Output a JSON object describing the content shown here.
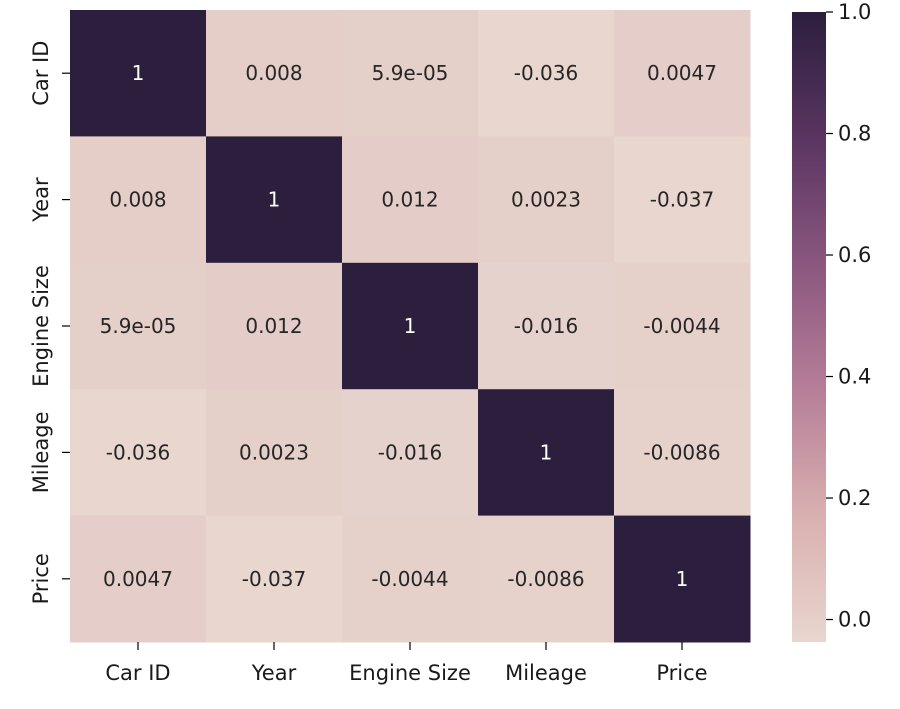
{
  "chart_data": {
    "type": "heatmap",
    "title": "",
    "xlabel": "",
    "ylabel": "",
    "x_categories": [
      "Car ID",
      "Year",
      "Engine Size",
      "Mileage",
      "Price"
    ],
    "y_categories": [
      "Car ID",
      "Year",
      "Engine Size",
      "Mileage",
      "Price"
    ],
    "values": [
      [
        1,
        0.008,
        5.9e-05,
        -0.036,
        0.0047
      ],
      [
        0.008,
        1,
        0.012,
        0.0023,
        -0.037
      ],
      [
        5.9e-05,
        0.012,
        1,
        -0.016,
        -0.0044
      ],
      [
        -0.036,
        0.0023,
        -0.016,
        1,
        -0.0086
      ],
      [
        0.0047,
        -0.037,
        -0.0044,
        -0.0086,
        1
      ]
    ],
    "annotations": [
      [
        "1",
        "0.008",
        "5.9e-05",
        "-0.036",
        "0.0047"
      ],
      [
        "0.008",
        "1",
        "0.012",
        "0.0023",
        "-0.037"
      ],
      [
        "5.9e-05",
        "0.012",
        "1",
        "-0.016",
        "-0.0044"
      ],
      [
        "-0.036",
        "0.0023",
        "-0.016",
        "1",
        "-0.0086"
      ],
      [
        "0.0047",
        "-0.037",
        "-0.0044",
        "-0.0086",
        "1"
      ]
    ],
    "colorbar": {
      "range": [
        -0.037,
        1.0
      ],
      "ticks": [
        0.0,
        0.2,
        0.4,
        0.6,
        0.8,
        1.0
      ],
      "tick_labels": [
        "0.0",
        "0.2",
        "0.4",
        "0.6",
        "0.8",
        "1.0"
      ],
      "colors": [
        "#e8d6cf",
        "#d9b0b0",
        "#b67e98",
        "#8a577f",
        "#5a3561",
        "#2c1e3d"
      ]
    }
  }
}
